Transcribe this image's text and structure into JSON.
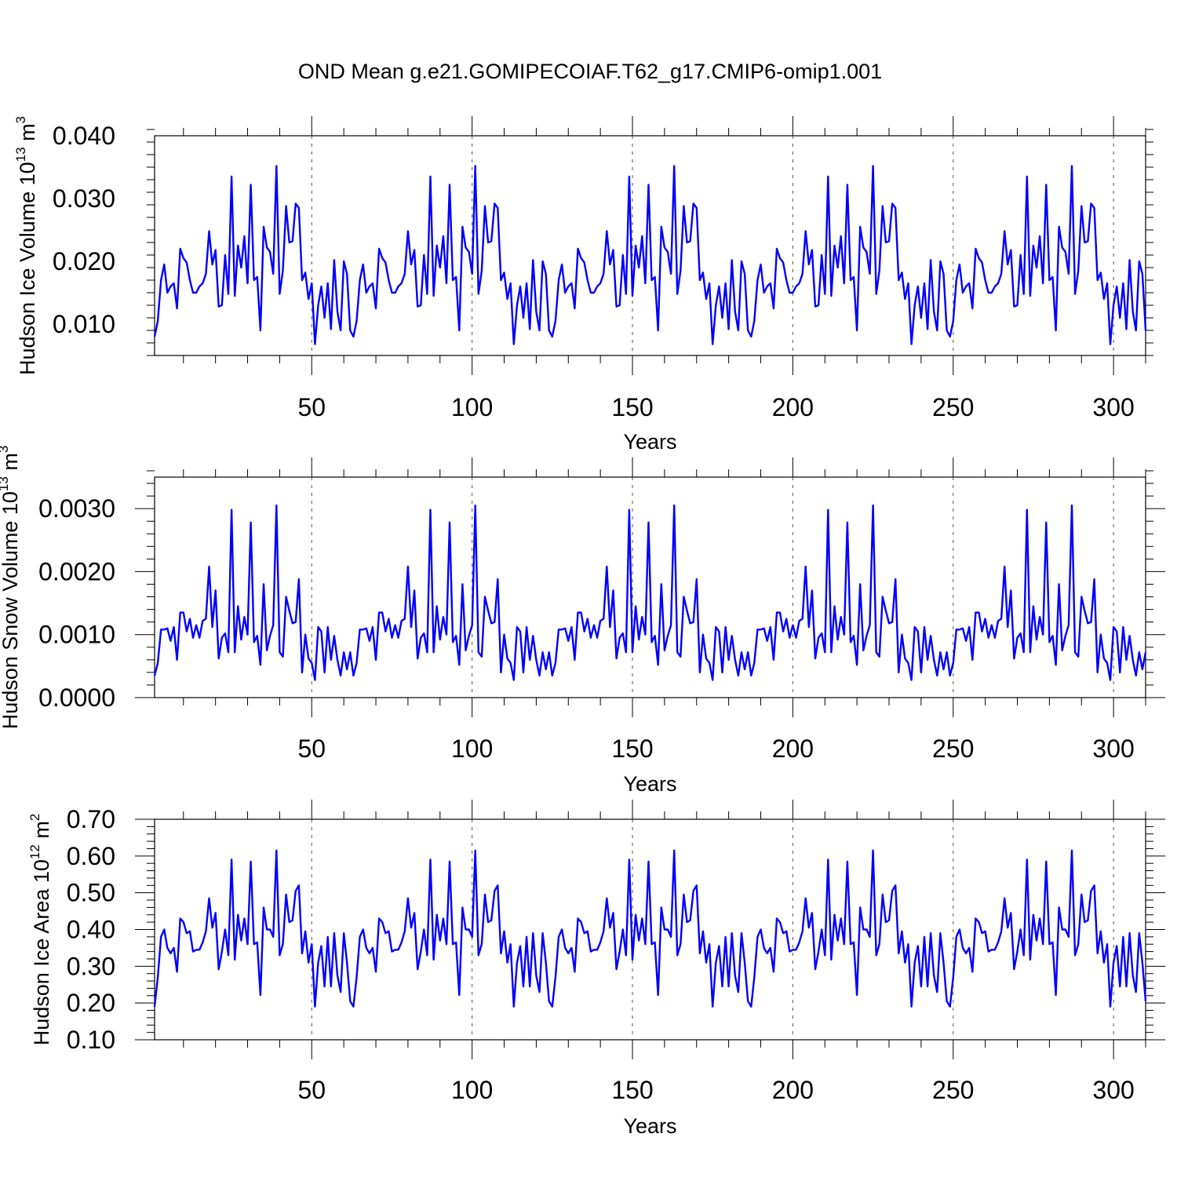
{
  "title": "OND Mean g.e21.GOMIPECOIAF.T62_g17.CMIP6-omip1.001",
  "x_tick_labels": [
    "50",
    "100",
    "150",
    "200",
    "250",
    "300"
  ],
  "chart_data": [
    {
      "type": "line",
      "ylabel_main": "Hudson Ice Volume 10",
      "ylabel_sup": "13",
      "ylabel_unit": " m",
      "ylabel_unit_sup": "3",
      "xlabel": "Years",
      "xlim": [
        1,
        310
      ],
      "ylim": [
        0.005,
        0.04
      ],
      "y_ticks": [
        0.01,
        0.02,
        0.03,
        0.04
      ],
      "y_tick_labels": [
        "0.010",
        "0.020",
        "0.030",
        "0.040"
      ],
      "x_grid": [
        50,
        100,
        150,
        200,
        250,
        300
      ],
      "cycle_length": 62,
      "values": [
        0.008,
        0.0105,
        0.017,
        0.0195,
        0.015,
        0.016,
        0.0165,
        0.0125,
        0.022,
        0.0205,
        0.0198,
        0.017,
        0.015,
        0.015,
        0.016,
        0.0165,
        0.018,
        0.0248,
        0.0195,
        0.0218,
        0.0128,
        0.013,
        0.021,
        0.0148,
        0.0335,
        0.0145,
        0.0225,
        0.019,
        0.024,
        0.0165,
        0.0322,
        0.017,
        0.0175,
        0.009,
        0.0255,
        0.0222,
        0.0215,
        0.018,
        0.0352,
        0.0148,
        0.0185,
        0.0288,
        0.023,
        0.0232,
        0.0292,
        0.0285,
        0.017,
        0.0182,
        0.014,
        0.0165,
        0.0068,
        0.013,
        0.016,
        0.011,
        0.0165,
        0.0092,
        0.0202,
        0.012,
        0.009,
        0.02,
        0.018,
        0.009
      ]
    },
    {
      "type": "line",
      "ylabel_main": "Hudson Snow Volume 10",
      "ylabel_sup": "13",
      "ylabel_unit": " m",
      "ylabel_unit_sup": "3",
      "xlabel": "Years",
      "xlim": [
        1,
        310
      ],
      "ylim": [
        0.0,
        0.0035
      ],
      "y_ticks": [
        0.0,
        0.001,
        0.002,
        0.003
      ],
      "y_tick_labels": [
        "0.0000",
        "0.0010",
        "0.0020",
        "0.0030"
      ],
      "x_grid": [
        50,
        100,
        150,
        200,
        250,
        300
      ],
      "cycle_length": 62,
      "values": [
        0.00035,
        0.00055,
        0.00108,
        0.00108,
        0.0011,
        0.0009,
        0.00112,
        0.0006,
        0.00135,
        0.00135,
        0.00105,
        0.00125,
        0.00095,
        0.00115,
        0.00095,
        0.00122,
        0.00125,
        0.00208,
        0.00112,
        0.0017,
        0.00062,
        0.00095,
        0.00102,
        0.00072,
        0.00298,
        0.00072,
        0.00145,
        0.00092,
        0.00128,
        0.001,
        0.00278,
        0.00088,
        0.00098,
        0.00052,
        0.0018,
        0.00075,
        0.00098,
        0.00115,
        0.00305,
        0.00072,
        0.00065,
        0.0016,
        0.00138,
        0.00118,
        0.0012,
        0.00188,
        0.0004,
        0.001,
        0.00062,
        0.00055,
        0.00028,
        0.00112,
        0.00105,
        0.0004,
        0.00112,
        0.0006,
        0.00098,
        0.0006,
        0.00035,
        0.00072,
        0.00045,
        0.00072
      ]
    },
    {
      "type": "line",
      "ylabel_main": "Hudson Ice Area 10",
      "ylabel_sup": "12",
      "ylabel_unit": " m",
      "ylabel_unit_sup": "2",
      "xlabel": "Years",
      "xlim": [
        1,
        310
      ],
      "ylim": [
        0.1,
        0.7
      ],
      "y_ticks": [
        0.1,
        0.2,
        0.3,
        0.4,
        0.5,
        0.6,
        0.7
      ],
      "y_tick_labels": [
        "0.10",
        "0.20",
        "0.30",
        "0.40",
        "0.50",
        "0.60",
        "0.70"
      ],
      "x_grid": [
        50,
        100,
        150,
        200,
        250,
        300
      ],
      "cycle_length": 62,
      "values": [
        0.19,
        0.27,
        0.38,
        0.4,
        0.35,
        0.335,
        0.35,
        0.285,
        0.43,
        0.42,
        0.39,
        0.395,
        0.34,
        0.345,
        0.345,
        0.365,
        0.395,
        0.485,
        0.405,
        0.445,
        0.292,
        0.34,
        0.4,
        0.33,
        0.59,
        0.318,
        0.44,
        0.37,
        0.43,
        0.36,
        0.585,
        0.36,
        0.365,
        0.222,
        0.46,
        0.4,
        0.4,
        0.38,
        0.615,
        0.33,
        0.36,
        0.495,
        0.42,
        0.425,
        0.505,
        0.52,
        0.335,
        0.395,
        0.31,
        0.36,
        0.19,
        0.31,
        0.355,
        0.245,
        0.38,
        0.245,
        0.39,
        0.275,
        0.23,
        0.39,
        0.31,
        0.205
      ]
    }
  ]
}
